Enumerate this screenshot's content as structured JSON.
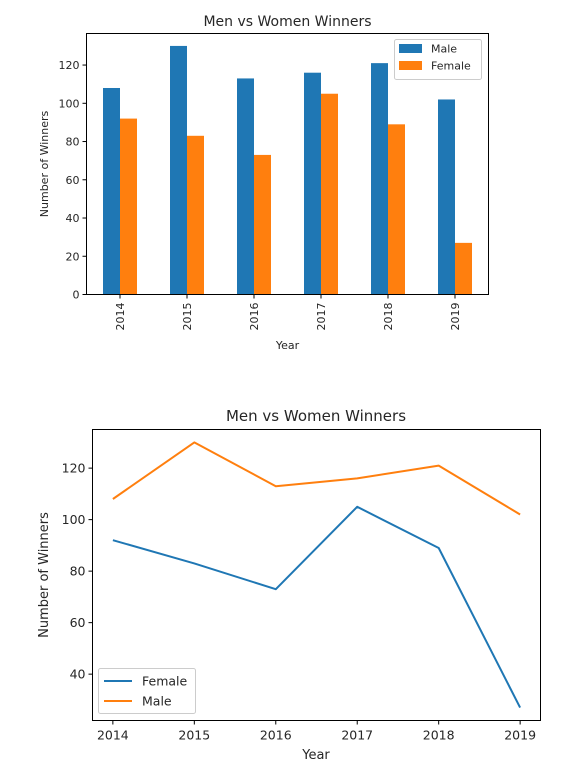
{
  "chart_data": [
    {
      "type": "bar",
      "title": "Men vs Women Winners",
      "xlabel": "Year",
      "ylabel": "Number of Winners",
      "categories": [
        "2014",
        "2015",
        "2016",
        "2017",
        "2018",
        "2019"
      ],
      "series": [
        {
          "name": "Male",
          "color": "#1f77b4",
          "values": [
            108,
            130,
            113,
            116,
            121,
            102
          ]
        },
        {
          "name": "Female",
          "color": "#ff7f0e",
          "values": [
            92,
            83,
            73,
            105,
            89,
            27
          ]
        }
      ],
      "ylim": [
        0,
        136.5
      ],
      "yticks": [
        0,
        20,
        40,
        60,
        80,
        100,
        120
      ],
      "xtick_rotation": "vertical",
      "legend": "top-right",
      "grid": false
    },
    {
      "type": "line",
      "title": "Men vs Women Winners",
      "xlabel": "Year",
      "ylabel": "Number of Winners",
      "x": [
        2014,
        2015,
        2016,
        2017,
        2018,
        2019
      ],
      "series": [
        {
          "name": "Female",
          "color": "#1f77b4",
          "values": [
            92,
            83,
            73,
            105,
            89,
            27
          ]
        },
        {
          "name": "Male",
          "color": "#ff7f0e",
          "values": [
            108,
            130,
            113,
            116,
            121,
            102
          ]
        }
      ],
      "xlim": [
        2013.75,
        2019.25
      ],
      "ylim": [
        22,
        135
      ],
      "yticks": [
        40,
        60,
        80,
        100,
        120
      ],
      "legend": "bottom-left",
      "grid": false
    }
  ]
}
